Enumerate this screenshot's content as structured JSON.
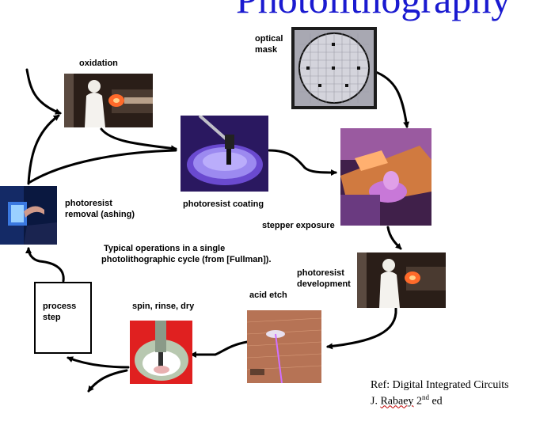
{
  "title": "Photolithography",
  "labels": {
    "optical_mask_1": "optical",
    "optical_mask_2": "mask",
    "oxidation": "oxidation",
    "photoresist_removal_1": "photoresist",
    "photoresist_removal_2": "removal (ashing)",
    "photoresist_coating": "photoresist coating",
    "stepper_exposure": "stepper exposure",
    "caption_1": "Typical operations in a single",
    "caption_2": "photolithographic cycle (from [Fullman]).",
    "photoresist_development_1": "photoresist",
    "photoresist_development_2": "development",
    "acid_etch": "acid etch",
    "spin_rinse_dry": "spin, rinse, dry",
    "process_step_1": "process",
    "process_step_2": "step"
  },
  "reference": {
    "line1": "Ref: Digital Integrated Circuits",
    "author_initial": "J.",
    "author_name": "Rabaey",
    "edition_num": "2",
    "edition_sup": "nd",
    "edition_word": "ed"
  },
  "colors": {
    "title": "#1a1ad0",
    "arrow": "#000000"
  }
}
